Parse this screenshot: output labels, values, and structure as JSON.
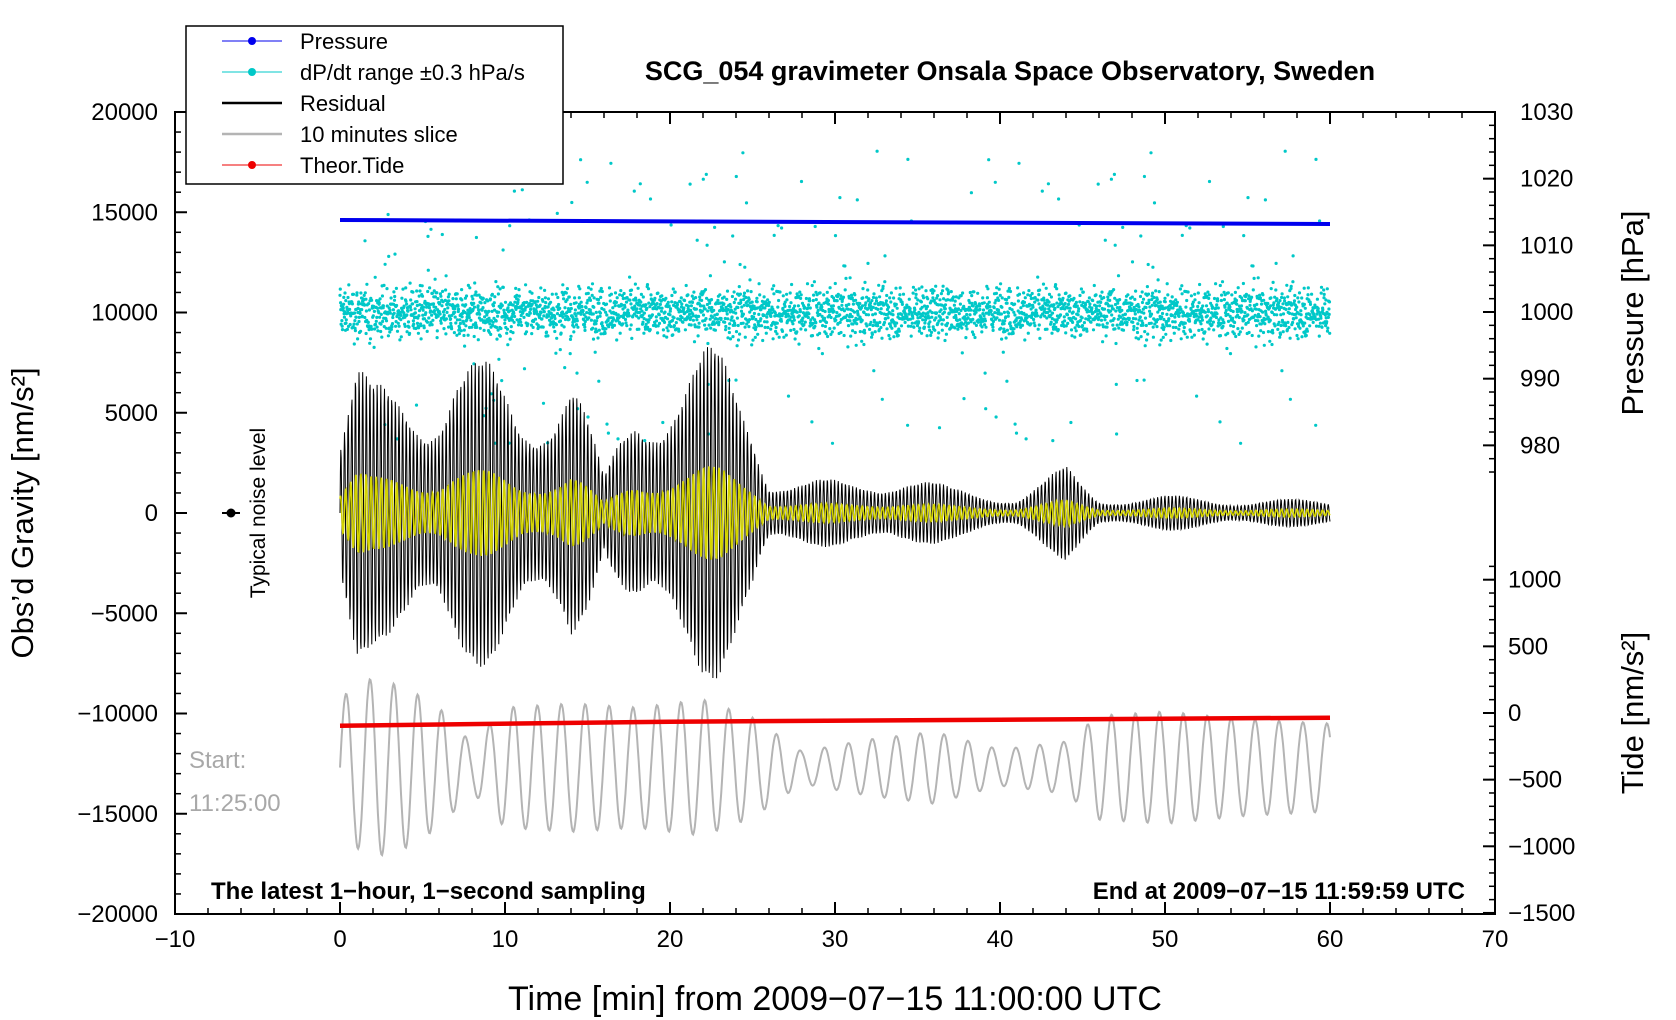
{
  "chart_data": {
    "type": "line",
    "title": "SCG_054 gravimeter Onsala Space Observatory, Sweden",
    "xlabel": "Time [min] from 2009−07−15 11:00:00 UTC",
    "ylabel_left": "Obs’d Gravity [nm/s²]",
    "ylabel_right_top": "Pressure [hPa]",
    "ylabel_right_bottom": "Tide [nm/s²]",
    "xlim": [
      -10,
      70
    ],
    "ylim_left": [
      -20000,
      20000
    ],
    "x_ticks": [
      "−10",
      "0",
      "10",
      "20",
      "30",
      "40",
      "50",
      "60",
      "70"
    ],
    "y_ticks_left": [
      "20000",
      "15000",
      "10000",
      "5000",
      "0",
      "−5000",
      "−10000",
      "−15000",
      "−20000"
    ],
    "pressure_ticks": [
      "1030",
      "1020",
      "1010",
      "1000",
      "990",
      "980"
    ],
    "tide_ticks": [
      "1000",
      "500",
      "0",
      "−500",
      "−1000",
      "−1500"
    ],
    "legend": [
      {
        "label": "Pressure",
        "color": "#0000ee",
        "marker": true
      },
      {
        "label": "dP/dt range ±0.3 hPa/s",
        "color": "#00c8c8",
        "marker": true
      },
      {
        "label": "Residual",
        "color": "#000000",
        "marker": false
      },
      {
        "label": "10 minutes slice",
        "color": "#b4b4b4",
        "marker": false
      },
      {
        "label": "Theor.Tide",
        "color": "#ee0000",
        "marker": true
      }
    ],
    "annotations": {
      "noise_label": "Typical noise level",
      "start_label": "Start:",
      "start_time": "11:25:00",
      "bottom_left": "The latest 1−hour, 1−second sampling",
      "bottom_right": "End at 2009−07−15 11:59:59 UTC"
    },
    "pressure_series": {
      "x": [
        0,
        60
      ],
      "y": [
        1013.8,
        1013.2
      ],
      "unit": "hPa"
    },
    "dpdt_band": {
      "center": 1000,
      "spread": 10,
      "range": [
        975,
        1030
      ],
      "unit": "hPa scale"
    },
    "theoretical_tide": {
      "x": [
        0,
        20,
        40,
        60
      ],
      "y": [
        -95,
        -65,
        -50,
        -35
      ],
      "unit": "nm/s²"
    },
    "residual_envelope": {
      "x": [
        0,
        1,
        2,
        4,
        6,
        7,
        9,
        11,
        14,
        16,
        18,
        20,
        22,
        23,
        25,
        26,
        28,
        31,
        34,
        37,
        41,
        44,
        46,
        50,
        55,
        60
      ],
      "amp": [
        4000,
        7500,
        6500,
        7500,
        7000,
        8000,
        7600,
        6000,
        8000,
        1800,
        6500,
        7500,
        8500,
        8200,
        5500,
        2200,
        1800,
        1600,
        2200,
        1300,
        900,
        2400,
        800,
        900,
        700,
        700
      ],
      "unit": "nm/s²"
    },
    "slice_series_envelope": {
      "x": [
        0,
        2,
        4,
        6,
        8,
        10,
        14,
        18,
        22,
        25,
        28,
        32,
        36,
        40,
        44,
        46,
        50,
        55,
        60
      ],
      "amp": [
        3500,
        4500,
        4000,
        3000,
        1200,
        3000,
        3200,
        3000,
        3400,
        2500,
        800,
        1400,
        1800,
        900,
        1300,
        2600,
        2800,
        2400,
        2200
      ],
      "center": -12700,
      "unit": "nm/s²"
    }
  }
}
